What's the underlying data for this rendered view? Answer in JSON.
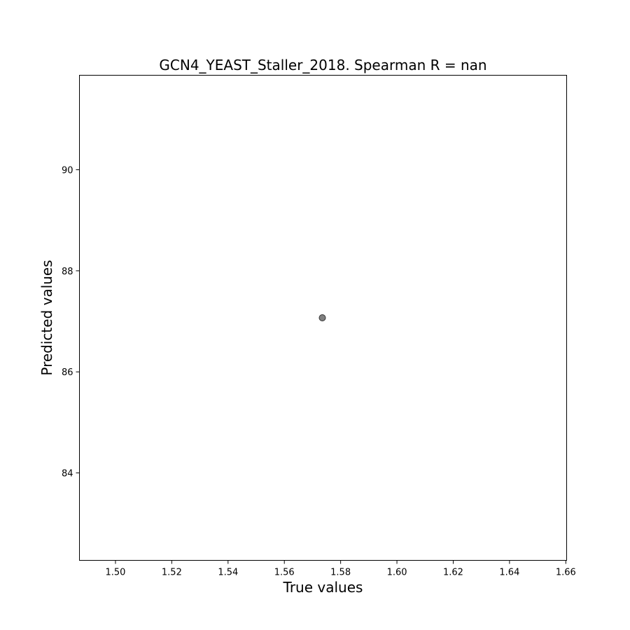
{
  "chart_data": {
    "type": "scatter",
    "title": "GCN4_YEAST_Staller_2018. Spearman R = nan",
    "xlabel": "True values",
    "ylabel": "Predicted values",
    "xlim": [
      1.4872,
      1.6603
    ],
    "ylim": [
      82.27,
      91.87
    ],
    "xticks": [
      1.5,
      1.52,
      1.54,
      1.56,
      1.58,
      1.6,
      1.62,
      1.64,
      1.66
    ],
    "xtick_labels": [
      "1.50",
      "1.52",
      "1.54",
      "1.56",
      "1.58",
      "1.60",
      "1.62",
      "1.64",
      "1.66"
    ],
    "yticks": [
      84,
      86,
      88,
      90
    ],
    "ytick_labels": [
      "84",
      "86",
      "88",
      "90"
    ],
    "grid": false,
    "legend": "none",
    "series": [
      {
        "points": [
          {
            "x": 1.5735,
            "y": 87.07
          }
        ],
        "color": "#555555"
      }
    ]
  }
}
